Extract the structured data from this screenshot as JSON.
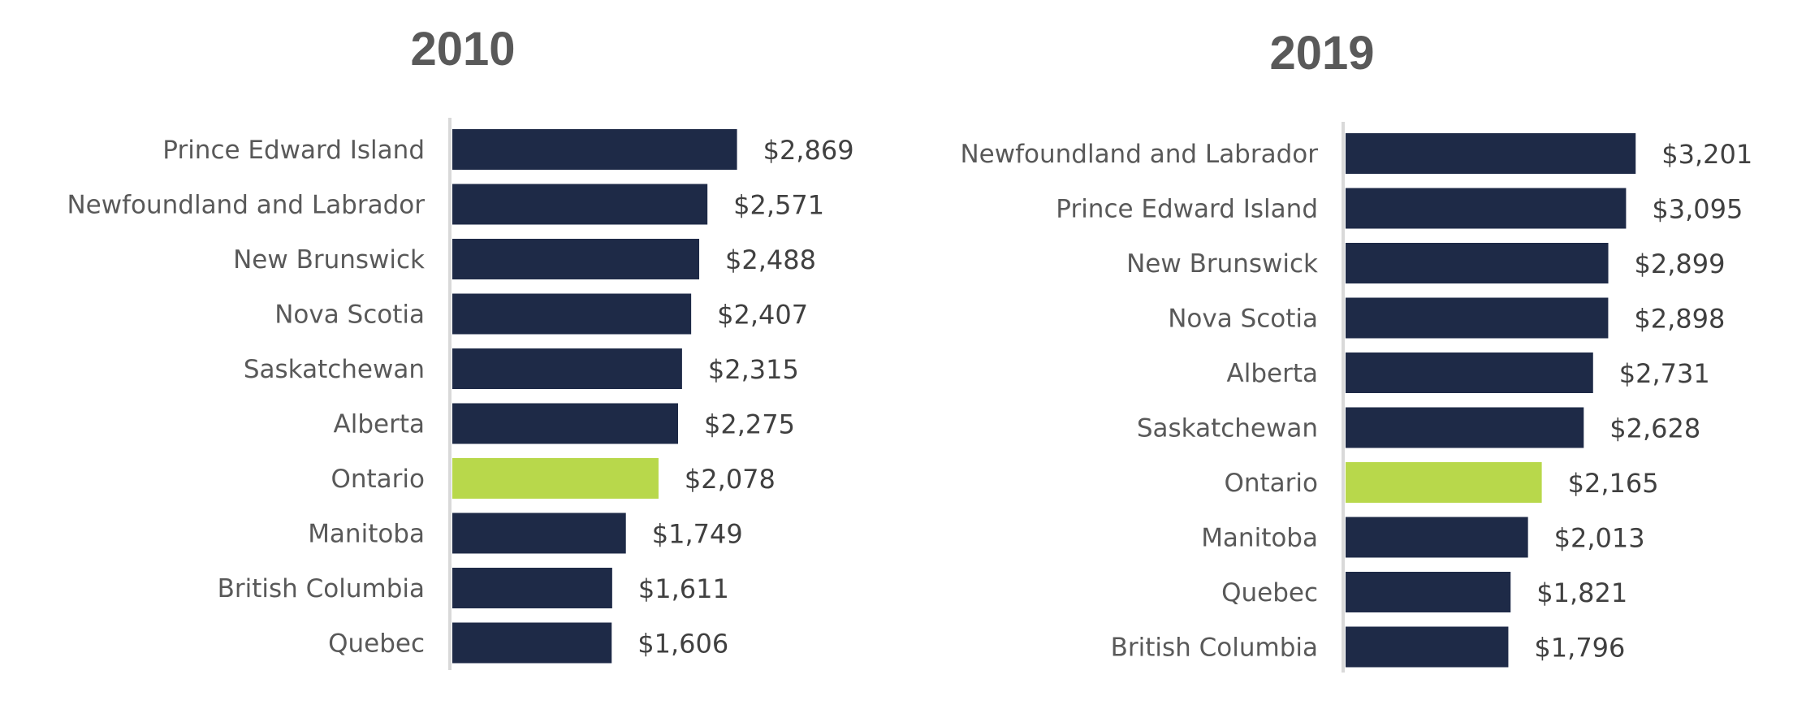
{
  "chart_data": [
    {
      "type": "bar",
      "orientation": "horizontal",
      "title": "2010",
      "categories": [
        "Prince Edward Island",
        "Newfoundland and Labrador",
        "New Brunswick",
        "Nova Scotia",
        "Saskatchewan",
        "Alberta",
        "Ontario",
        "Manitoba",
        "British Columbia",
        "Quebec"
      ],
      "values": [
        2869,
        2571,
        2488,
        2407,
        2315,
        2275,
        2078,
        1749,
        1611,
        1606
      ],
      "value_labels": [
        "$2,869",
        "$2,571",
        "$2,488",
        "$2,407",
        "$2,315",
        "$2,275",
        "$2,078",
        "$1,749",
        "$1,611",
        "$1,606"
      ],
      "highlight": "Ontario",
      "xlim": [
        0,
        3200
      ],
      "xlabel": "",
      "ylabel": "",
      "grid": false
    },
    {
      "type": "bar",
      "orientation": "horizontal",
      "title": "2019",
      "categories": [
        "Newfoundland and Labrador",
        "Prince Edward Island",
        "New Brunswick",
        "Nova Scotia",
        "Alberta",
        "Saskatchewan",
        "Ontario",
        "Manitoba",
        "Quebec",
        "British Columbia"
      ],
      "values": [
        3201,
        3095,
        2899,
        2898,
        2731,
        2628,
        2165,
        2013,
        1821,
        1796
      ],
      "value_labels": [
        "$3,201",
        "$3,095",
        "$2,899",
        "$2,898",
        "$2,731",
        "$2,628",
        "$2,165",
        "$2,013",
        "$1,821",
        "$1,796"
      ],
      "highlight": "Ontario",
      "xlim": [
        0,
        3650
      ],
      "xlabel": "",
      "ylabel": "",
      "grid": false
    }
  ],
  "colors": {
    "bar": "#1e2a47",
    "highlight": "#b8d84b",
    "axis": "#d9d9d9",
    "title": "#595959",
    "category_text": "#595959",
    "value_text": "#404040"
  }
}
